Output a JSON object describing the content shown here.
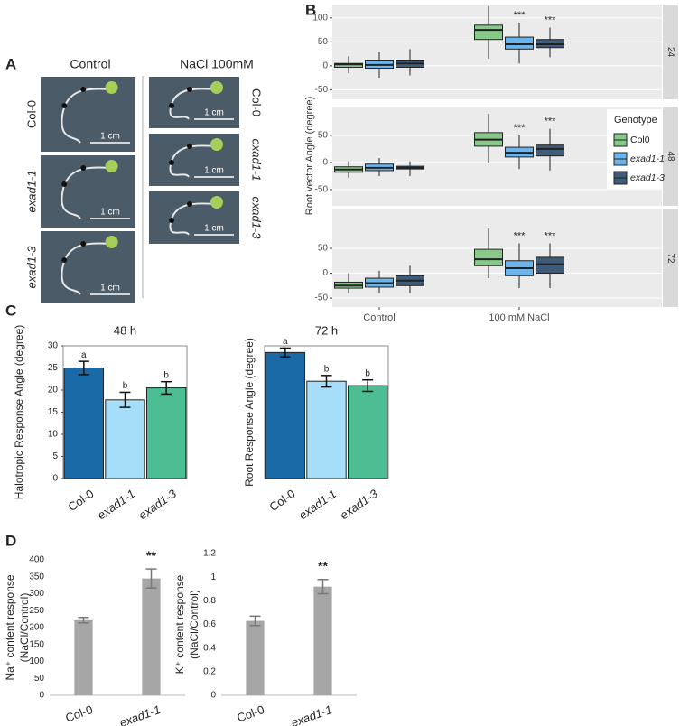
{
  "panel_labels": [
    "A",
    "B",
    "C",
    "D"
  ],
  "photo_panel": {
    "column_titles": [
      "Control",
      "NaCl 100mM"
    ],
    "row_labels": [
      "Col-0",
      "exad1-1",
      "exad1-3"
    ],
    "scale_label": "1 cm"
  },
  "chart_data": [
    {
      "type": "box",
      "ylabel": "Root vector Angle (degree)",
      "categories": [
        "Control",
        "100 mM NaCl"
      ],
      "legend_title": "Genotype",
      "grid": true,
      "series": [
        {
          "name": "Col0",
          "color": "#88c98a"
        },
        {
          "name": "exad1-1",
          "color": "#6bb5ec"
        },
        {
          "name": "exad1-3",
          "color": "#3e5c7a"
        }
      ],
      "facets": [
        {
          "label": "24",
          "ylim": [
            -70,
            128
          ],
          "yticks": [
            -50,
            0,
            50,
            100
          ],
          "boxes": [
            [
              {
                "low": -15,
                "q1": -3,
                "median": 3,
                "q3": 5,
                "high": 20
              },
              {
                "low": 15,
                "q1": 55,
                "median": 75,
                "q3": 85,
                "high": 125
              }
            ],
            [
              {
                "low": -25,
                "q1": -5,
                "median": 2,
                "q3": 12,
                "high": 28
              },
              {
                "low": 5,
                "q1": 35,
                "median": 45,
                "q3": 60,
                "high": 90
              }
            ],
            [
              {
                "low": -20,
                "q1": -3,
                "median": 5,
                "q3": 12,
                "high": 35
              },
              {
                "low": 18,
                "q1": 38,
                "median": 45,
                "q3": 55,
                "high": 80
              }
            ]
          ],
          "significance": [
            [
              null,
              null
            ],
            [
              null,
              "***"
            ],
            [
              null,
              "***"
            ]
          ]
        },
        {
          "label": "48",
          "ylim": [
            -80,
            103
          ],
          "yticks": [
            -50,
            0,
            50
          ],
          "boxes": [
            [
              {
                "low": -28,
                "q1": -18,
                "median": -13,
                "q3": -8,
                "high": 2
              },
              {
                "low": 0,
                "q1": 30,
                "median": 42,
                "q3": 55,
                "high": 90
              }
            ],
            [
              {
                "low": -25,
                "q1": -15,
                "median": -10,
                "q3": -3,
                "high": 8
              },
              {
                "low": -12,
                "q1": 10,
                "median": 18,
                "q3": 28,
                "high": 50
              }
            ],
            [
              {
                "low": -25,
                "q1": -12,
                "median": -10,
                "q3": -7,
                "high": 2
              },
              {
                "low": -15,
                "q1": 12,
                "median": 25,
                "q3": 32,
                "high": 62
              }
            ]
          ],
          "significance": [
            [
              null,
              null
            ],
            [
              null,
              "***"
            ],
            [
              null,
              "***"
            ]
          ]
        },
        {
          "label": "72",
          "ylim": [
            -68,
            128
          ],
          "yticks": [
            -50,
            0,
            50
          ],
          "boxes": [
            [
              {
                "low": -40,
                "q1": -30,
                "median": -25,
                "q3": -18,
                "high": 0
              },
              {
                "low": -10,
                "q1": 15,
                "median": 28,
                "q3": 48,
                "high": 90
              }
            ],
            [
              {
                "low": -40,
                "q1": -28,
                "median": -20,
                "q3": -10,
                "high": 5
              },
              {
                "low": -30,
                "q1": -5,
                "median": 10,
                "q3": 25,
                "high": 60
              }
            ],
            [
              {
                "low": -40,
                "q1": -25,
                "median": -15,
                "q3": -5,
                "high": 15
              },
              {
                "low": -30,
                "q1": 0,
                "median": 18,
                "q3": 32,
                "high": 60
              }
            ]
          ],
          "significance": [
            [
              null,
              null
            ],
            [
              null,
              "***"
            ],
            [
              null,
              "***"
            ]
          ]
        }
      ]
    },
    {
      "type": "bar",
      "title": "48 h",
      "ylabel": [
        "Halotropic Response Angle (degree)"
      ],
      "categories": [
        "Col-0",
        "exad1-1",
        "exad1-3"
      ],
      "values": [
        25,
        17.8,
        20.5
      ],
      "errors": [
        1.5,
        1.7,
        1.4
      ],
      "annotations": [
        "a",
        "b",
        "b"
      ],
      "colors": [
        "#1a6aa8",
        "#a6ddf8",
        "#4dbd93"
      ],
      "ylim": [
        0,
        30
      ],
      "yticks": [
        0,
        5,
        10,
        15,
        20,
        25,
        30
      ]
    },
    {
      "type": "bar",
      "title": "72 h",
      "ylabel": [
        "Root Response Angle (degree)"
      ],
      "categories": [
        "Col-0",
        "exad1-1",
        "exad1-3"
      ],
      "values": [
        28.5,
        22,
        21
      ],
      "errors": [
        1,
        1.3,
        1.3
      ],
      "annotations": [
        "a",
        "b",
        "b"
      ],
      "colors": [
        "#1a6aa8",
        "#a6ddf8",
        "#4dbd93"
      ],
      "ylim": [
        0,
        30
      ]
    },
    {
      "type": "bar",
      "ylabel": [
        "Na⁺ content response",
        "(NaCl/Control)"
      ],
      "categories": [
        "Col-0",
        "exad1-1"
      ],
      "values": [
        222,
        345
      ],
      "errors": [
        8,
        28
      ],
      "annotations": [
        null,
        "**"
      ],
      "colors": [
        "#a6a6a6",
        "#a6a6a6"
      ],
      "ylim": [
        0,
        400
      ],
      "yticks": [
        0,
        50,
        100,
        150,
        200,
        250,
        300,
        350,
        400
      ]
    },
    {
      "type": "bar",
      "ylabel": [
        "K⁺ content response",
        "(NaCl/Control)"
      ],
      "categories": [
        "Col-0",
        "exad1-1"
      ],
      "values": [
        0.63,
        0.92
      ],
      "errors": [
        0.04,
        0.06
      ],
      "annotations": [
        null,
        "**"
      ],
      "colors": [
        "#a6a6a6",
        "#a6a6a6"
      ],
      "ylim": [
        0,
        1.2
      ],
      "yticks": [
        0,
        0.2,
        0.4,
        0.6,
        0.8,
        1,
        1.2
      ]
    }
  ]
}
